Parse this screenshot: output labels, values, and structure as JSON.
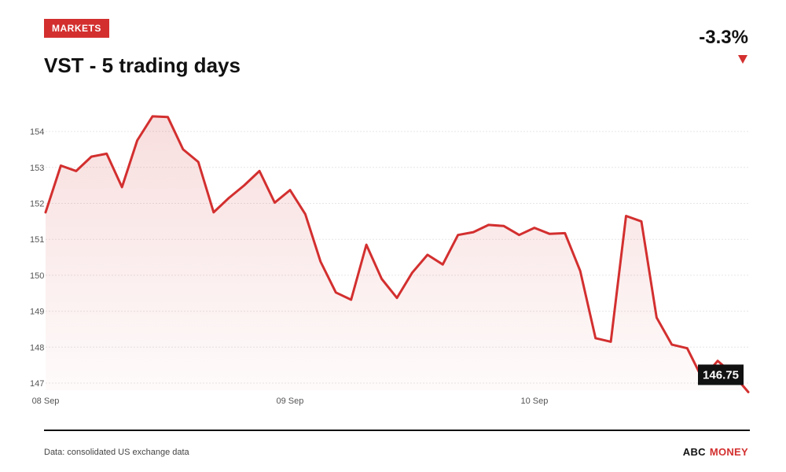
{
  "header": {
    "badge": "MARKETS",
    "title": "VST - 5 trading days",
    "change": "-3.3%"
  },
  "footer": {
    "source": "Data: consolidated US exchange data",
    "brand_part1": "ABC",
    "brand_part2": "MONEY"
  },
  "colors": {
    "accent": "#d32f2f",
    "line": "#d32f2f"
  },
  "chart_data": {
    "type": "area",
    "y_ticks": [
      147,
      148,
      149,
      150,
      151,
      152,
      153,
      154
    ],
    "ylim": [
      146.85,
      155.0
    ],
    "x_ticks": [
      {
        "label": "08 Sep",
        "index": 0
      },
      {
        "label": "09 Sep",
        "index": 16
      },
      {
        "label": "10 Sep",
        "index": 32
      }
    ],
    "last_value_label": "146.75",
    "grid": true,
    "series": [
      {
        "values": [
          151.75,
          153.05,
          152.9,
          153.3,
          153.38,
          152.45,
          153.75,
          154.42,
          154.4,
          153.5,
          153.15,
          151.75,
          152.15,
          152.5,
          152.9,
          152.02,
          152.37,
          151.7,
          150.38,
          149.52,
          149.32,
          150.85,
          149.9,
          149.37,
          150.07,
          150.57,
          150.3,
          151.12,
          151.2,
          151.4,
          151.37,
          151.12,
          151.32,
          151.15,
          151.17,
          150.12,
          148.25,
          148.15,
          151.65,
          151.5,
          148.82,
          148.07,
          147.97,
          147.12,
          147.62,
          147.25,
          146.75
        ]
      }
    ]
  }
}
